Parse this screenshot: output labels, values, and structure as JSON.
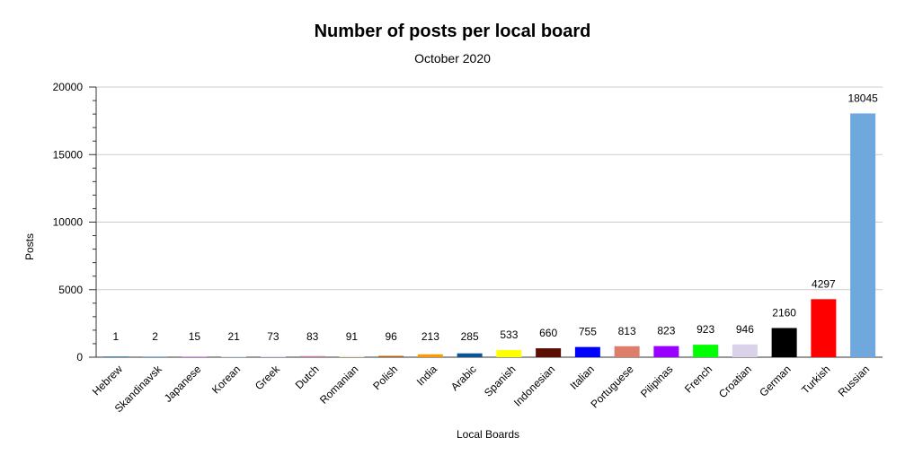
{
  "chart_data": {
    "type": "bar",
    "title": "Number of posts per local board",
    "subtitle": "October 2020",
    "xlabel": "Local Boards",
    "ylabel": "Posts",
    "ylim": [
      0,
      20000
    ],
    "yticks": [
      "0",
      "5000",
      "10000",
      "15000",
      "20000"
    ],
    "grid": true,
    "categories": [
      "Hebrew",
      "Skandinavsk",
      "Japanese",
      "Korean",
      "Greek",
      "Dutch",
      "Romanian",
      "Polish",
      "India",
      "Arabic",
      "Spanish",
      "Indonesian",
      "Italian",
      "Portuguese",
      "Pilipinas",
      "French",
      "Croatian",
      "German",
      "Turkish",
      "Russian"
    ],
    "values": [
      1,
      2,
      15,
      21,
      73,
      83,
      91,
      96,
      213,
      285,
      533,
      660,
      755,
      813,
      823,
      923,
      946,
      2160,
      4297,
      18045
    ],
    "value_labels": [
      "1",
      "2",
      "15",
      "21",
      "73",
      "83",
      "91",
      "96",
      "213",
      "285",
      "533",
      "660",
      "755",
      "813",
      "823",
      "923",
      "946",
      "2160",
      "4297",
      "18045"
    ],
    "colors": [
      "#1f77b4",
      "#6fa8dc",
      "#ea80fc",
      "#cfe2f3",
      "#d9e5f3",
      "#c27ba0",
      "#fce5cd",
      "#b45f06",
      "#ff9900",
      "#0b5394",
      "#ffff00",
      "#5b0f00",
      "#0000ff",
      "#dd7e6b",
      "#9900ff",
      "#00ff00",
      "#d9d2e9",
      "#000000",
      "#ff0000",
      "#6fa8dc"
    ]
  }
}
